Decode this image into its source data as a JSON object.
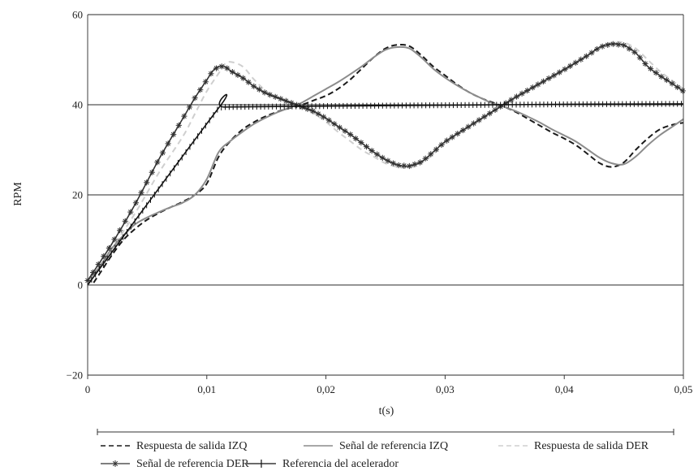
{
  "chart_data": {
    "type": "line",
    "xlabel": "t(s)",
    "ylabel": "RPM",
    "xlim": [
      0,
      0.05
    ],
    "ylim": [
      -20,
      60
    ],
    "x_ticks": [
      0,
      0.01,
      0.02,
      0.03,
      0.04,
      0.05
    ],
    "x_tick_labels": [
      "0",
      "0,01",
      "0,02",
      "0,03",
      "0,04",
      "0,05"
    ],
    "y_ticks": [
      -20,
      0,
      20,
      40,
      60
    ],
    "y_tick_labels": [
      "−20",
      "0",
      "20",
      "40",
      "60"
    ],
    "grid": "horizontal",
    "legend_position": "bottom",
    "series": [
      {
        "name": "Respuesta de salida IZQ",
        "style": "dashed",
        "color": "#1a1a1a",
        "marker": "none",
        "x": [
          0.0005,
          0.001,
          0.002,
          0.003,
          0.004,
          0.005,
          0.006,
          0.007,
          0.008,
          0.009,
          0.01,
          0.011,
          0.012,
          0.013,
          0.014,
          0.015,
          0.016,
          0.017,
          0.018,
          0.019,
          0.02,
          0.021,
          0.022,
          0.023,
          0.024,
          0.025,
          0.026,
          0.027,
          0.028,
          0.029,
          0.03,
          0.031,
          0.032,
          0.033,
          0.034,
          0.035,
          0.036,
          0.037,
          0.038,
          0.039,
          0.04,
          0.041,
          0.042,
          0.043,
          0.044,
          0.045,
          0.046,
          0.047,
          0.048,
          0.049,
          0.05
        ],
        "values": [
          0.5,
          2.5,
          6.5,
          10,
          12.5,
          14.5,
          16,
          17.3,
          18.5,
          20,
          22.5,
          28.5,
          32,
          34.5,
          36.2,
          37.5,
          38.5,
          39.3,
          40,
          41,
          42,
          43.5,
          45.5,
          48,
          50.5,
          52.5,
          53.3,
          53,
          51,
          48.5,
          46.5,
          44.5,
          42.8,
          41.5,
          40.5,
          39.5,
          38.3,
          36.8,
          35.3,
          33.8,
          32.5,
          31,
          29,
          27,
          26.2,
          27.2,
          30,
          32.5,
          34.5,
          35.5,
          36
        ]
      },
      {
        "name": "Señal de referencia IZQ",
        "style": "solid",
        "color": "#8c8c8c",
        "marker": "none",
        "x": [
          0,
          0.001,
          0.002,
          0.003,
          0.004,
          0.005,
          0.006,
          0.007,
          0.008,
          0.009,
          0.01,
          0.011,
          0.012,
          0.013,
          0.014,
          0.015,
          0.016,
          0.017,
          0.018,
          0.019,
          0.02,
          0.021,
          0.022,
          0.023,
          0.024,
          0.025,
          0.026,
          0.027,
          0.028,
          0.029,
          0.03,
          0.031,
          0.032,
          0.033,
          0.034,
          0.035,
          0.036,
          0.037,
          0.038,
          0.039,
          0.04,
          0.041,
          0.042,
          0.043,
          0.044,
          0.045,
          0.046,
          0.047,
          0.048,
          0.049,
          0.05
        ],
        "values": [
          1,
          4,
          8,
          11,
          13.5,
          15,
          16.2,
          17.3,
          18.3,
          20,
          23.5,
          29.5,
          32,
          34,
          35.8,
          37.2,
          38.4,
          39.4,
          40.5,
          42,
          43.5,
          45,
          46.7,
          48.5,
          50.5,
          52.2,
          52.8,
          52.5,
          50.5,
          48,
          46,
          44.3,
          42.8,
          41.5,
          40.3,
          39.5,
          38.5,
          37.3,
          36,
          34.5,
          33.2,
          31.8,
          30,
          28.2,
          27,
          26.8,
          28.5,
          31,
          33.2,
          35,
          36.8
        ]
      },
      {
        "name": "Respuesta de salida DER",
        "style": "dashed",
        "color": "#cfcfcf",
        "marker": "none",
        "x": [
          0,
          0.002,
          0.004,
          0.006,
          0.008,
          0.009,
          0.01,
          0.011,
          0.0115,
          0.012,
          0.013,
          0.014,
          0.015,
          0.016,
          0.017,
          0.018,
          0.019,
          0.02,
          0.021,
          0.022,
          0.023,
          0.024,
          0.025,
          0.026,
          0.027,
          0.028,
          0.029,
          0.03,
          0.032,
          0.034,
          0.035,
          0.036,
          0.038,
          0.04,
          0.042,
          0.043,
          0.044,
          0.045,
          0.046,
          0.047,
          0.048,
          0.049,
          0.05
        ],
        "values": [
          0.5,
          8,
          16,
          25,
          33,
          38,
          43,
          47,
          49,
          49.5,
          48.5,
          45.5,
          43,
          41.5,
          40.3,
          39.3,
          38,
          36.2,
          34,
          32,
          30,
          28.5,
          27,
          26.2,
          26,
          27,
          29,
          31.5,
          35,
          38.5,
          40,
          41.5,
          44.5,
          47.5,
          51,
          52.8,
          53.8,
          53.8,
          52.5,
          50,
          47.5,
          45.5,
          43.5
        ]
      },
      {
        "name": "Señal de referencia DER",
        "style": "solid",
        "color": "#333333",
        "marker": "asterisk",
        "x": [
          0,
          0.002,
          0.004,
          0.006,
          0.008,
          0.009,
          0.01,
          0.0105,
          0.011,
          0.0115,
          0.012,
          0.013,
          0.014,
          0.015,
          0.016,
          0.017,
          0.018,
          0.019,
          0.02,
          0.021,
          0.022,
          0.023,
          0.024,
          0.025,
          0.026,
          0.027,
          0.028,
          0.029,
          0.03,
          0.032,
          0.034,
          0.035,
          0.036,
          0.038,
          0.04,
          0.042,
          0.043,
          0.044,
          0.045,
          0.046,
          0.047,
          0.048,
          0.049,
          0.05
        ],
        "values": [
          1,
          9,
          18,
          28,
          37,
          41.5,
          45.5,
          47.5,
          48.5,
          48.5,
          47.5,
          46,
          44,
          42.5,
          41.5,
          40.5,
          39.5,
          38.5,
          37,
          35.2,
          33.5,
          31.5,
          29.5,
          27.8,
          26.6,
          26.4,
          27.3,
          29.5,
          31.8,
          35.2,
          38.5,
          40.2,
          41.8,
          44.8,
          47.8,
          51,
          52.8,
          53.5,
          53.2,
          51.5,
          48.5,
          46.5,
          44.8,
          43
        ]
      },
      {
        "name": "Referencia del acelerador",
        "style": "solid",
        "color": "#111111",
        "marker": "plus",
        "x": [
          0,
          0.011,
          0.0115,
          0.02,
          0.03,
          0.04,
          0.05
        ],
        "values": [
          0,
          39.3,
          39.5,
          39.7,
          39.9,
          40.1,
          40.2
        ]
      }
    ]
  }
}
